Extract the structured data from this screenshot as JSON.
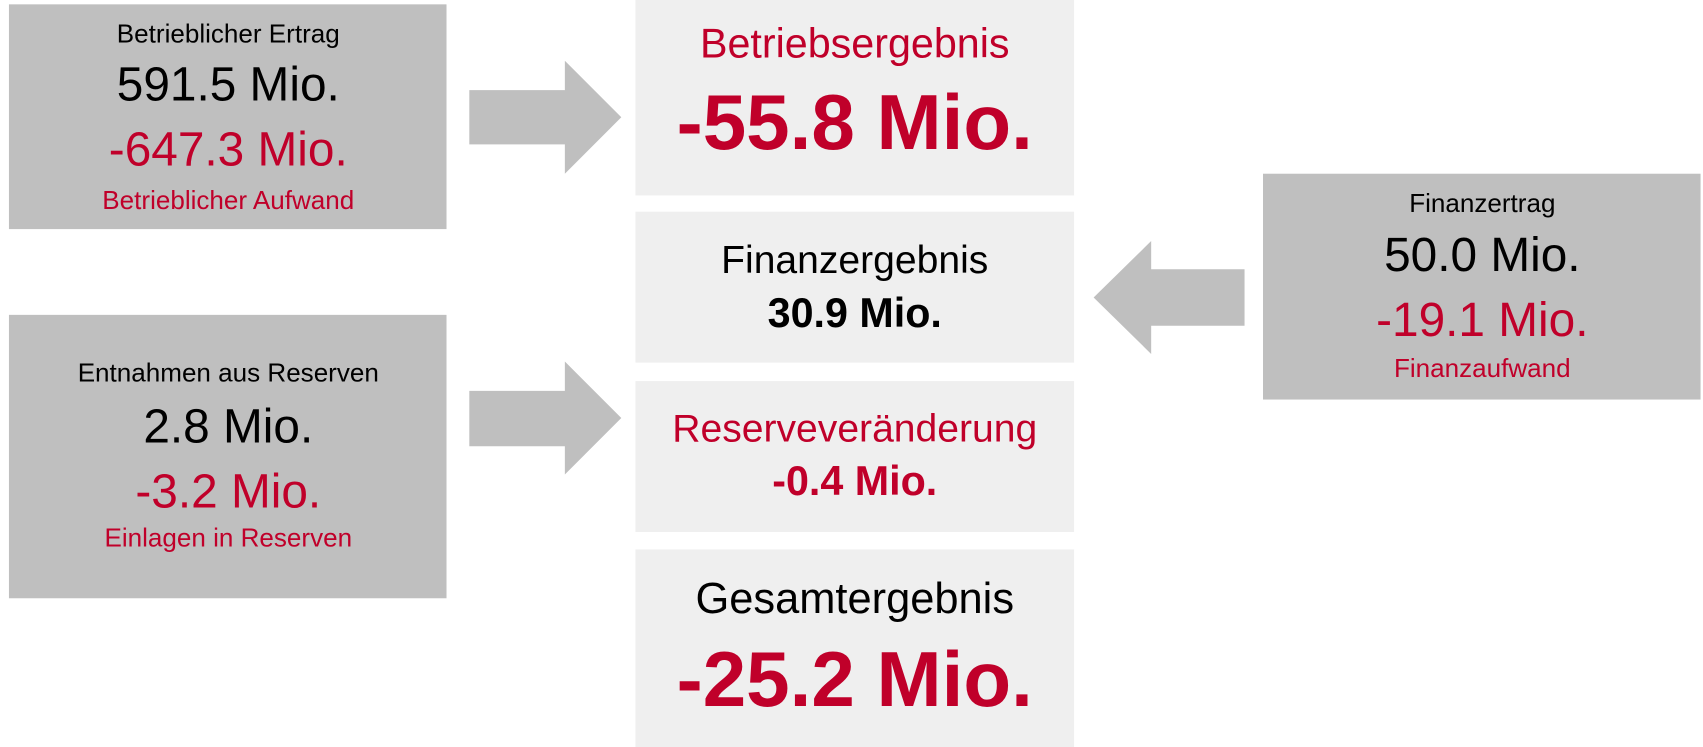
{
  "sources": [
    {
      "income_label": "Betrieblicher Ertrag",
      "income": "591.5 Mio.",
      "expense": "-647.3 Mio.",
      "expense_label": "Betrieblicher Aufwand"
    },
    {
      "income_label": "Entnahmen aus Reserven",
      "income": "2.8 Mio.",
      "expense": "-3.2 Mio.",
      "expense_label": "Einlagen in Reserven"
    },
    {
      "income_label": "Finanzertrag",
      "income": "50.0 Mio.",
      "expense": "-19.1 Mio.",
      "expense_label": "Finanzaufwand"
    }
  ],
  "results": [
    {
      "label": "Betriebsergebnis",
      "value": "-55.8 Mio."
    },
    {
      "label": "Finanzergebnis",
      "value": "30.9 Mio."
    },
    {
      "label": "Reserveveränderung",
      "value": "-0.4 Mio."
    },
    {
      "label": "Gesamtergebnis",
      "value": "-25.2 Mio."
    }
  ]
}
